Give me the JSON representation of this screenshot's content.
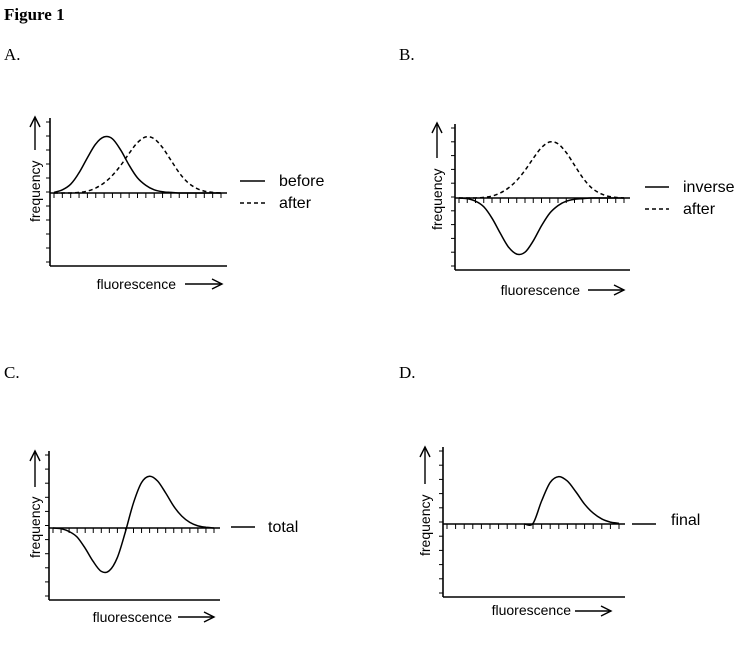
{
  "figure_title": "Figure 1",
  "chart_data": [
    {
      "type": "line",
      "panel_label": "A.",
      "xlabel": "fluorescence",
      "ylabel": "frequency",
      "series": [
        {
          "name": "before",
          "style": "solid",
          "x": [
            0,
            1,
            2,
            3,
            4,
            5,
            6,
            7,
            8,
            9,
            10,
            11,
            12,
            13,
            14,
            15,
            16,
            17,
            18,
            19,
            20
          ],
          "values": [
            0.1,
            0.5,
            1.4,
            3.2,
            5.6,
            7.8,
            8.9,
            8.6,
            6.8,
            4.4,
            2.4,
            1.2,
            0.5,
            0.2,
            0.1,
            0,
            0,
            0,
            0,
            0,
            0
          ]
        },
        {
          "name": "after",
          "style": "dashed",
          "x": [
            0,
            1,
            2,
            3,
            4,
            5,
            6,
            7,
            8,
            9,
            10,
            11,
            12,
            13,
            14,
            15,
            16,
            17,
            18,
            19,
            20
          ],
          "values": [
            0,
            0,
            0,
            0.1,
            0.3,
            0.8,
            1.6,
            2.8,
            4.4,
            6.3,
            8.0,
            8.9,
            8.6,
            7.2,
            5.2,
            3.2,
            1.7,
            0.8,
            0.3,
            0.1,
            0
          ]
        }
      ]
    },
    {
      "type": "line",
      "panel_label": "B.",
      "xlabel": "fluorescence",
      "ylabel": "frequency",
      "series": [
        {
          "name": "inverse",
          "style": "solid",
          "x": [
            0,
            1,
            2,
            3,
            4,
            5,
            6,
            7,
            8,
            9,
            10,
            11,
            12,
            13,
            14,
            15,
            16,
            17,
            18,
            19,
            20
          ],
          "values": [
            0,
            -0.1,
            -0.5,
            -1.4,
            -3.2,
            -5.6,
            -7.8,
            -8.9,
            -8.6,
            -6.8,
            -4.4,
            -2.4,
            -1.2,
            -0.5,
            -0.2,
            -0.1,
            0,
            0,
            0,
            0,
            0
          ]
        },
        {
          "name": "after",
          "style": "dashed",
          "x": [
            0,
            1,
            2,
            3,
            4,
            5,
            6,
            7,
            8,
            9,
            10,
            11,
            12,
            13,
            14,
            15,
            16,
            17,
            18,
            19,
            20
          ],
          "values": [
            0,
            0,
            0,
            0.1,
            0.3,
            0.8,
            1.6,
            2.8,
            4.4,
            6.3,
            8.0,
            8.9,
            8.6,
            7.2,
            5.2,
            3.2,
            1.7,
            0.8,
            0.3,
            0.1,
            0
          ]
        }
      ]
    },
    {
      "type": "line",
      "panel_label": "C.",
      "xlabel": "fluorescence",
      "ylabel": "frequency",
      "series": [
        {
          "name": "total",
          "style": "solid",
          "x": [
            0,
            1,
            2,
            3,
            4,
            5,
            6,
            7,
            8,
            9,
            10,
            11,
            12,
            13,
            14,
            15,
            16,
            17,
            18,
            19,
            20
          ],
          "values": [
            0,
            -0.1,
            -0.5,
            -1.3,
            -2.9,
            -4.8,
            -6.2,
            -6.1,
            -4.2,
            -0.5,
            3.6,
            6.5,
            7.4,
            6.7,
            5.0,
            3.1,
            1.7,
            0.8,
            0.3,
            0.1,
            0
          ]
        }
      ]
    },
    {
      "type": "line",
      "panel_label": "D.",
      "xlabel": "fluorescence",
      "ylabel": "frequency",
      "series": [
        {
          "name": "final",
          "style": "solid",
          "x": [
            0,
            1,
            2,
            3,
            4,
            5,
            6,
            7,
            8,
            9,
            10,
            11,
            12,
            13,
            14,
            15,
            16,
            17,
            18,
            19,
            20
          ],
          "values": [
            0,
            0,
            0,
            0,
            0,
            0,
            0,
            0,
            0,
            0,
            0.1,
            3.6,
            6.5,
            7.4,
            6.7,
            5.0,
            3.1,
            1.7,
            0.8,
            0.3,
            0.1
          ]
        }
      ]
    }
  ]
}
